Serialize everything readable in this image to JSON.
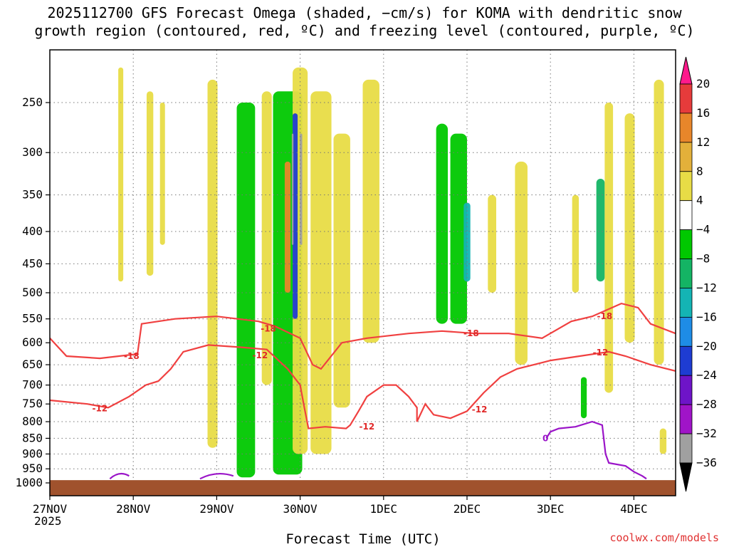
{
  "title": {
    "line1": "2025112700 GFS Forecast Omega (shaded, −cm/s) for KOMA with dendritic snow",
    "line2": "growth region (contoured, red, ºC) and freezing level (contoured, purple, ºC)"
  },
  "credit": "coolwx.com/models",
  "chart_data": {
    "type": "heatmap",
    "title": "2025112700 GFS Forecast Omega (shaded, −cm/s) for KOMA with dendritic snow growth region (contoured, red, ºC) and freezing level (contoured, purple, ºC)",
    "xlabel": "Forecast Time (UTC)",
    "ylabel": "",
    "y_scale": "log-pressure",
    "ylim": [
      1000,
      200
    ],
    "y_ticks": [
      250,
      300,
      350,
      400,
      450,
      500,
      550,
      600,
      650,
      700,
      750,
      800,
      850,
      900,
      950,
      1000
    ],
    "x_ticks": [
      "27NOV",
      "28NOV",
      "29NOV",
      "30NOV",
      "1DEC",
      "2DEC",
      "3DEC",
      "4DEC"
    ],
    "x_year": "2025",
    "x_range_days": [
      0,
      7.5
    ],
    "grid": true,
    "colorbar": {
      "labels": [
        "20",
        "16",
        "12",
        "8",
        "4",
        "−4",
        "−8",
        "−12",
        "−16",
        "−20",
        "−24",
        "−28",
        "−32",
        "−36"
      ],
      "colors": [
        "#ff1a8c",
        "#e63b3b",
        "#e8862a",
        "#e3b03a",
        "#e8dc46",
        "#ffffff",
        "#00c800",
        "#14b464",
        "#14b4b4",
        "#1e8ce6",
        "#1e3cd2",
        "#6e14c8",
        "#a014c8",
        "#a0a0a0",
        "#000000"
      ]
    },
    "omega_regions": [
      {
        "day": 0.85,
        "p0": 220,
        "p1": 480,
        "w": 0.06,
        "value": 6
      },
      {
        "day": 1.2,
        "p0": 240,
        "p1": 470,
        "w": 0.08,
        "value": 6
      },
      {
        "day": 1.35,
        "p0": 250,
        "p1": 420,
        "w": 0.06,
        "value": 6
      },
      {
        "day": 1.95,
        "p0": 230,
        "p1": 880,
        "w": 0.12,
        "value": 5
      },
      {
        "day": 2.35,
        "p0": 250,
        "p1": 980,
        "w": 0.22,
        "value": -6
      },
      {
        "day": 2.6,
        "p0": 240,
        "p1": 700,
        "w": 0.12,
        "value": 5
      },
      {
        "day": 2.85,
        "p0": 240,
        "p1": 970,
        "w": 0.35,
        "value": -7
      },
      {
        "day": 3.0,
        "p0": 220,
        "p1": 900,
        "w": 0.18,
        "value": 6
      },
      {
        "day": 2.85,
        "p0": 310,
        "p1": 500,
        "w": 0.07,
        "value": 12
      },
      {
        "day": 2.94,
        "p0": 260,
        "p1": 550,
        "w": 0.06,
        "value": -22
      },
      {
        "day": 3.01,
        "p0": 280,
        "p1": 420,
        "w": 0.03,
        "value": -36
      },
      {
        "day": 2.91,
        "p0": 280,
        "p1": 420,
        "w": 0.02,
        "value": -36
      },
      {
        "day": 3.25,
        "p0": 240,
        "p1": 900,
        "w": 0.25,
        "value": 5
      },
      {
        "day": 3.5,
        "p0": 280,
        "p1": 760,
        "w": 0.2,
        "value": 5
      },
      {
        "day": 3.85,
        "p0": 230,
        "p1": 600,
        "w": 0.2,
        "value": 6
      },
      {
        "day": 4.7,
        "p0": 270,
        "p1": 560,
        "w": 0.14,
        "value": -6
      },
      {
        "day": 4.9,
        "p0": 280,
        "p1": 560,
        "w": 0.2,
        "value": -8
      },
      {
        "day": 5.0,
        "p0": 360,
        "p1": 480,
        "w": 0.08,
        "value": -14
      },
      {
        "day": 5.3,
        "p0": 350,
        "p1": 500,
        "w": 0.1,
        "value": 4
      },
      {
        "day": 5.65,
        "p0": 310,
        "p1": 650,
        "w": 0.15,
        "value": 5
      },
      {
        "day": 6.3,
        "p0": 350,
        "p1": 500,
        "w": 0.08,
        "value": 4
      },
      {
        "day": 6.4,
        "p0": 680,
        "p1": 790,
        "w": 0.07,
        "value": -7
      },
      {
        "day": 6.6,
        "p0": 330,
        "p1": 480,
        "w": 0.1,
        "value": -10
      },
      {
        "day": 6.7,
        "p0": 250,
        "p1": 720,
        "w": 0.1,
        "value": 5
      },
      {
        "day": 6.95,
        "p0": 260,
        "p1": 600,
        "w": 0.12,
        "value": 6
      },
      {
        "day": 7.3,
        "p0": 230,
        "p1": 650,
        "w": 0.12,
        "value": 5
      },
      {
        "day": 7.35,
        "p0": 820,
        "p1": 900,
        "w": 0.08,
        "value": 5
      }
    ],
    "series": [
      {
        "name": "-18",
        "color": "#f04040",
        "points": [
          [
            0,
            590
          ],
          [
            0.2,
            630
          ],
          [
            0.6,
            635
          ],
          [
            1.05,
            625
          ],
          [
            1.1,
            560
          ],
          [
            1.5,
            550
          ],
          [
            2.0,
            545
          ],
          [
            2.5,
            555
          ],
          [
            2.7,
            565
          ],
          [
            3.0,
            590
          ],
          [
            3.15,
            650
          ],
          [
            3.25,
            660
          ],
          [
            3.5,
            600
          ],
          [
            3.8,
            590
          ],
          [
            4.3,
            580
          ],
          [
            4.7,
            575
          ],
          [
            5.1,
            580
          ],
          [
            5.5,
            580
          ],
          [
            5.9,
            590
          ],
          [
            6.25,
            555
          ],
          [
            6.5,
            545
          ],
          [
            6.85,
            520
          ],
          [
            7.05,
            528
          ],
          [
            7.2,
            560
          ],
          [
            7.5,
            580
          ]
        ],
        "label_day": 0.98,
        "label_p": 630
      },
      {
        "name": "-12",
        "color": "#f04040",
        "points": [
          [
            0,
            740
          ],
          [
            0.45,
            750
          ],
          [
            0.7,
            760
          ],
          [
            0.95,
            730
          ],
          [
            1.15,
            700
          ],
          [
            1.3,
            690
          ],
          [
            1.45,
            660
          ],
          [
            1.6,
            620
          ],
          [
            1.9,
            605
          ],
          [
            2.3,
            610
          ],
          [
            2.6,
            615
          ],
          [
            2.85,
            660
          ],
          [
            3.0,
            700
          ],
          [
            3.05,
            760
          ],
          [
            3.1,
            820
          ],
          [
            3.3,
            815
          ],
          [
            3.55,
            820
          ],
          [
            3.6,
            810
          ],
          [
            3.7,
            770
          ],
          [
            3.8,
            730
          ],
          [
            4.0,
            700
          ],
          [
            4.15,
            700
          ],
          [
            4.3,
            730
          ],
          [
            4.4,
            760
          ],
          [
            4.4,
            800
          ],
          [
            4.5,
            750
          ],
          [
            4.6,
            780
          ],
          [
            4.8,
            790
          ],
          [
            5.0,
            770
          ],
          [
            5.2,
            720
          ],
          [
            5.4,
            680
          ],
          [
            5.6,
            660
          ],
          [
            5.8,
            650
          ],
          [
            6.0,
            640
          ],
          [
            6.35,
            630
          ],
          [
            6.7,
            620
          ],
          [
            6.9,
            630
          ],
          [
            7.2,
            650
          ],
          [
            7.5,
            665
          ]
        ],
        "label_day": 0.58,
        "label_p": 760
      },
      {
        "name": "-12 (mid)",
        "color": "#f04040",
        "points": [],
        "label_day": 2.52,
        "label_p": 628
      },
      {
        "name": "-18 (mid)",
        "color": "#f04040",
        "points": [],
        "label_day": 2.62,
        "label_p": 568
      },
      {
        "name": "0",
        "color": "#9a14c8",
        "points": [
          [
            5.95,
            850
          ],
          [
            6.0,
            830
          ],
          [
            6.1,
            820
          ],
          [
            6.3,
            815
          ],
          [
            6.5,
            800
          ],
          [
            6.62,
            810
          ],
          [
            6.66,
            900
          ],
          [
            6.7,
            930
          ],
          [
            6.9,
            940
          ],
          [
            7.0,
            960
          ],
          [
            7.1,
            975
          ],
          [
            7.15,
            985
          ]
        ],
        "label_day": 5.95,
        "label_p": 850
      }
    ],
    "text_labels": [
      {
        "text": "-18",
        "day": 0.98,
        "p": 630
      },
      {
        "text": "-12",
        "day": 0.6,
        "p": 762
      },
      {
        "text": "-12",
        "day": 2.52,
        "p": 628
      },
      {
        "text": "-18",
        "day": 2.62,
        "p": 570
      },
      {
        "text": "-12",
        "day": 3.8,
        "p": 815
      },
      {
        "text": "-18",
        "day": 5.05,
        "p": 580
      },
      {
        "text": "-12",
        "day": 5.15,
        "p": 765
      },
      {
        "text": "-18",
        "day": 6.65,
        "p": 545
      },
      {
        "text": "-12",
        "day": 6.6,
        "p": 622
      },
      {
        "text": "0",
        "day": 5.94,
        "p": 850
      }
    ],
    "terrain_color": "#a0522d"
  },
  "xlabel": "Forecast Time (UTC)"
}
